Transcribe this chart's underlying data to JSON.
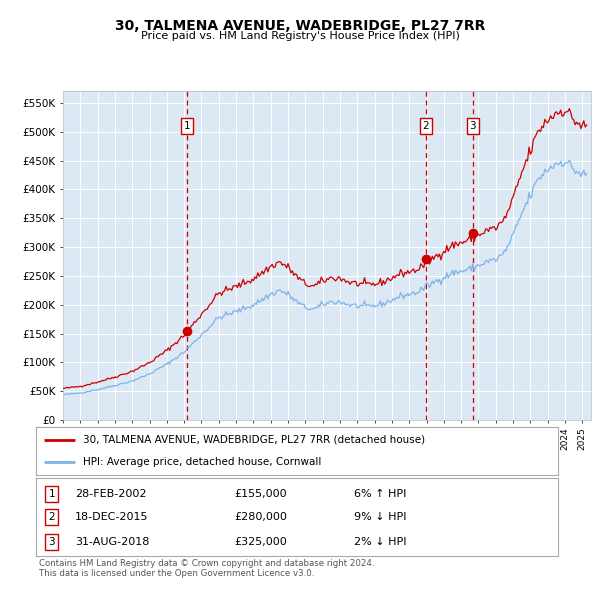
{
  "title": "30, TALMENA AVENUE, WADEBRIDGE, PL27 7RR",
  "subtitle": "Price paid vs. HM Land Registry's House Price Index (HPI)",
  "legend_line1": "30, TALMENA AVENUE, WADEBRIDGE, PL27 7RR (detached house)",
  "legend_line2": "HPI: Average price, detached house, Cornwall",
  "footer1": "Contains HM Land Registry data © Crown copyright and database right 2024.",
  "footer2": "This data is licensed under the Open Government Licence v3.0.",
  "sales": [
    {
      "label": "1",
      "date": "28-FEB-2002",
      "price": 155000,
      "hpi_pct": "6%",
      "direction": "↑"
    },
    {
      "label": "2",
      "date": "18-DEC-2015",
      "price": 280000,
      "hpi_pct": "9%",
      "direction": "↓"
    },
    {
      "label": "3",
      "date": "31-AUG-2018",
      "price": 325000,
      "hpi_pct": "2%",
      "direction": "↓"
    }
  ],
  "sale_dates_num": [
    2002.16,
    2015.96,
    2018.66
  ],
  "sale_prices": [
    155000,
    280000,
    325000
  ],
  "dashed_line_dates": [
    2002.16,
    2015.96,
    2018.66
  ],
  "ylim": [
    0,
    570000
  ],
  "yticks": [
    0,
    50000,
    100000,
    150000,
    200000,
    250000,
    300000,
    350000,
    400000,
    450000,
    500000,
    550000
  ],
  "bg_color": "#dce9f5",
  "hpi_line_color": "#7fb3e8",
  "price_line_color": "#cc0000",
  "sale_marker_color": "#cc0000",
  "dashed_line_color": "#cc0000",
  "grid_color": "#ffffff",
  "title_color": "#000000",
  "box_edge_color": "#cc0000",
  "hpi_anchors": {
    "1995.0": 44000,
    "1996.0": 47000,
    "1997.0": 53000,
    "1998.0": 60000,
    "1999.0": 68000,
    "2000.0": 80000,
    "2001.0": 97000,
    "2002.0": 118000,
    "2003.0": 148000,
    "2004.0": 178000,
    "2005.0": 188000,
    "2006.0": 200000,
    "2007.0": 218000,
    "2007.5": 225000,
    "2008.0": 218000,
    "2008.5": 205000,
    "2009.0": 195000,
    "2009.5": 192000,
    "2010.0": 200000,
    "2010.5": 205000,
    "2011.0": 205000,
    "2011.5": 200000,
    "2012.0": 198000,
    "2012.5": 197000,
    "2013.0": 198000,
    "2013.5": 202000,
    "2014.0": 208000,
    "2014.5": 215000,
    "2015.0": 218000,
    "2015.5": 222000,
    "2016.0": 232000,
    "2016.5": 240000,
    "2017.0": 248000,
    "2017.5": 255000,
    "2018.0": 258000,
    "2018.5": 262000,
    "2019.0": 268000,
    "2019.5": 275000,
    "2020.0": 278000,
    "2020.5": 290000,
    "2021.0": 320000,
    "2021.5": 358000,
    "2022.0": 390000,
    "2022.5": 420000,
    "2023.0": 435000,
    "2023.5": 445000,
    "2024.0": 450000,
    "2024.5": 435000,
    "2025.0": 425000
  }
}
